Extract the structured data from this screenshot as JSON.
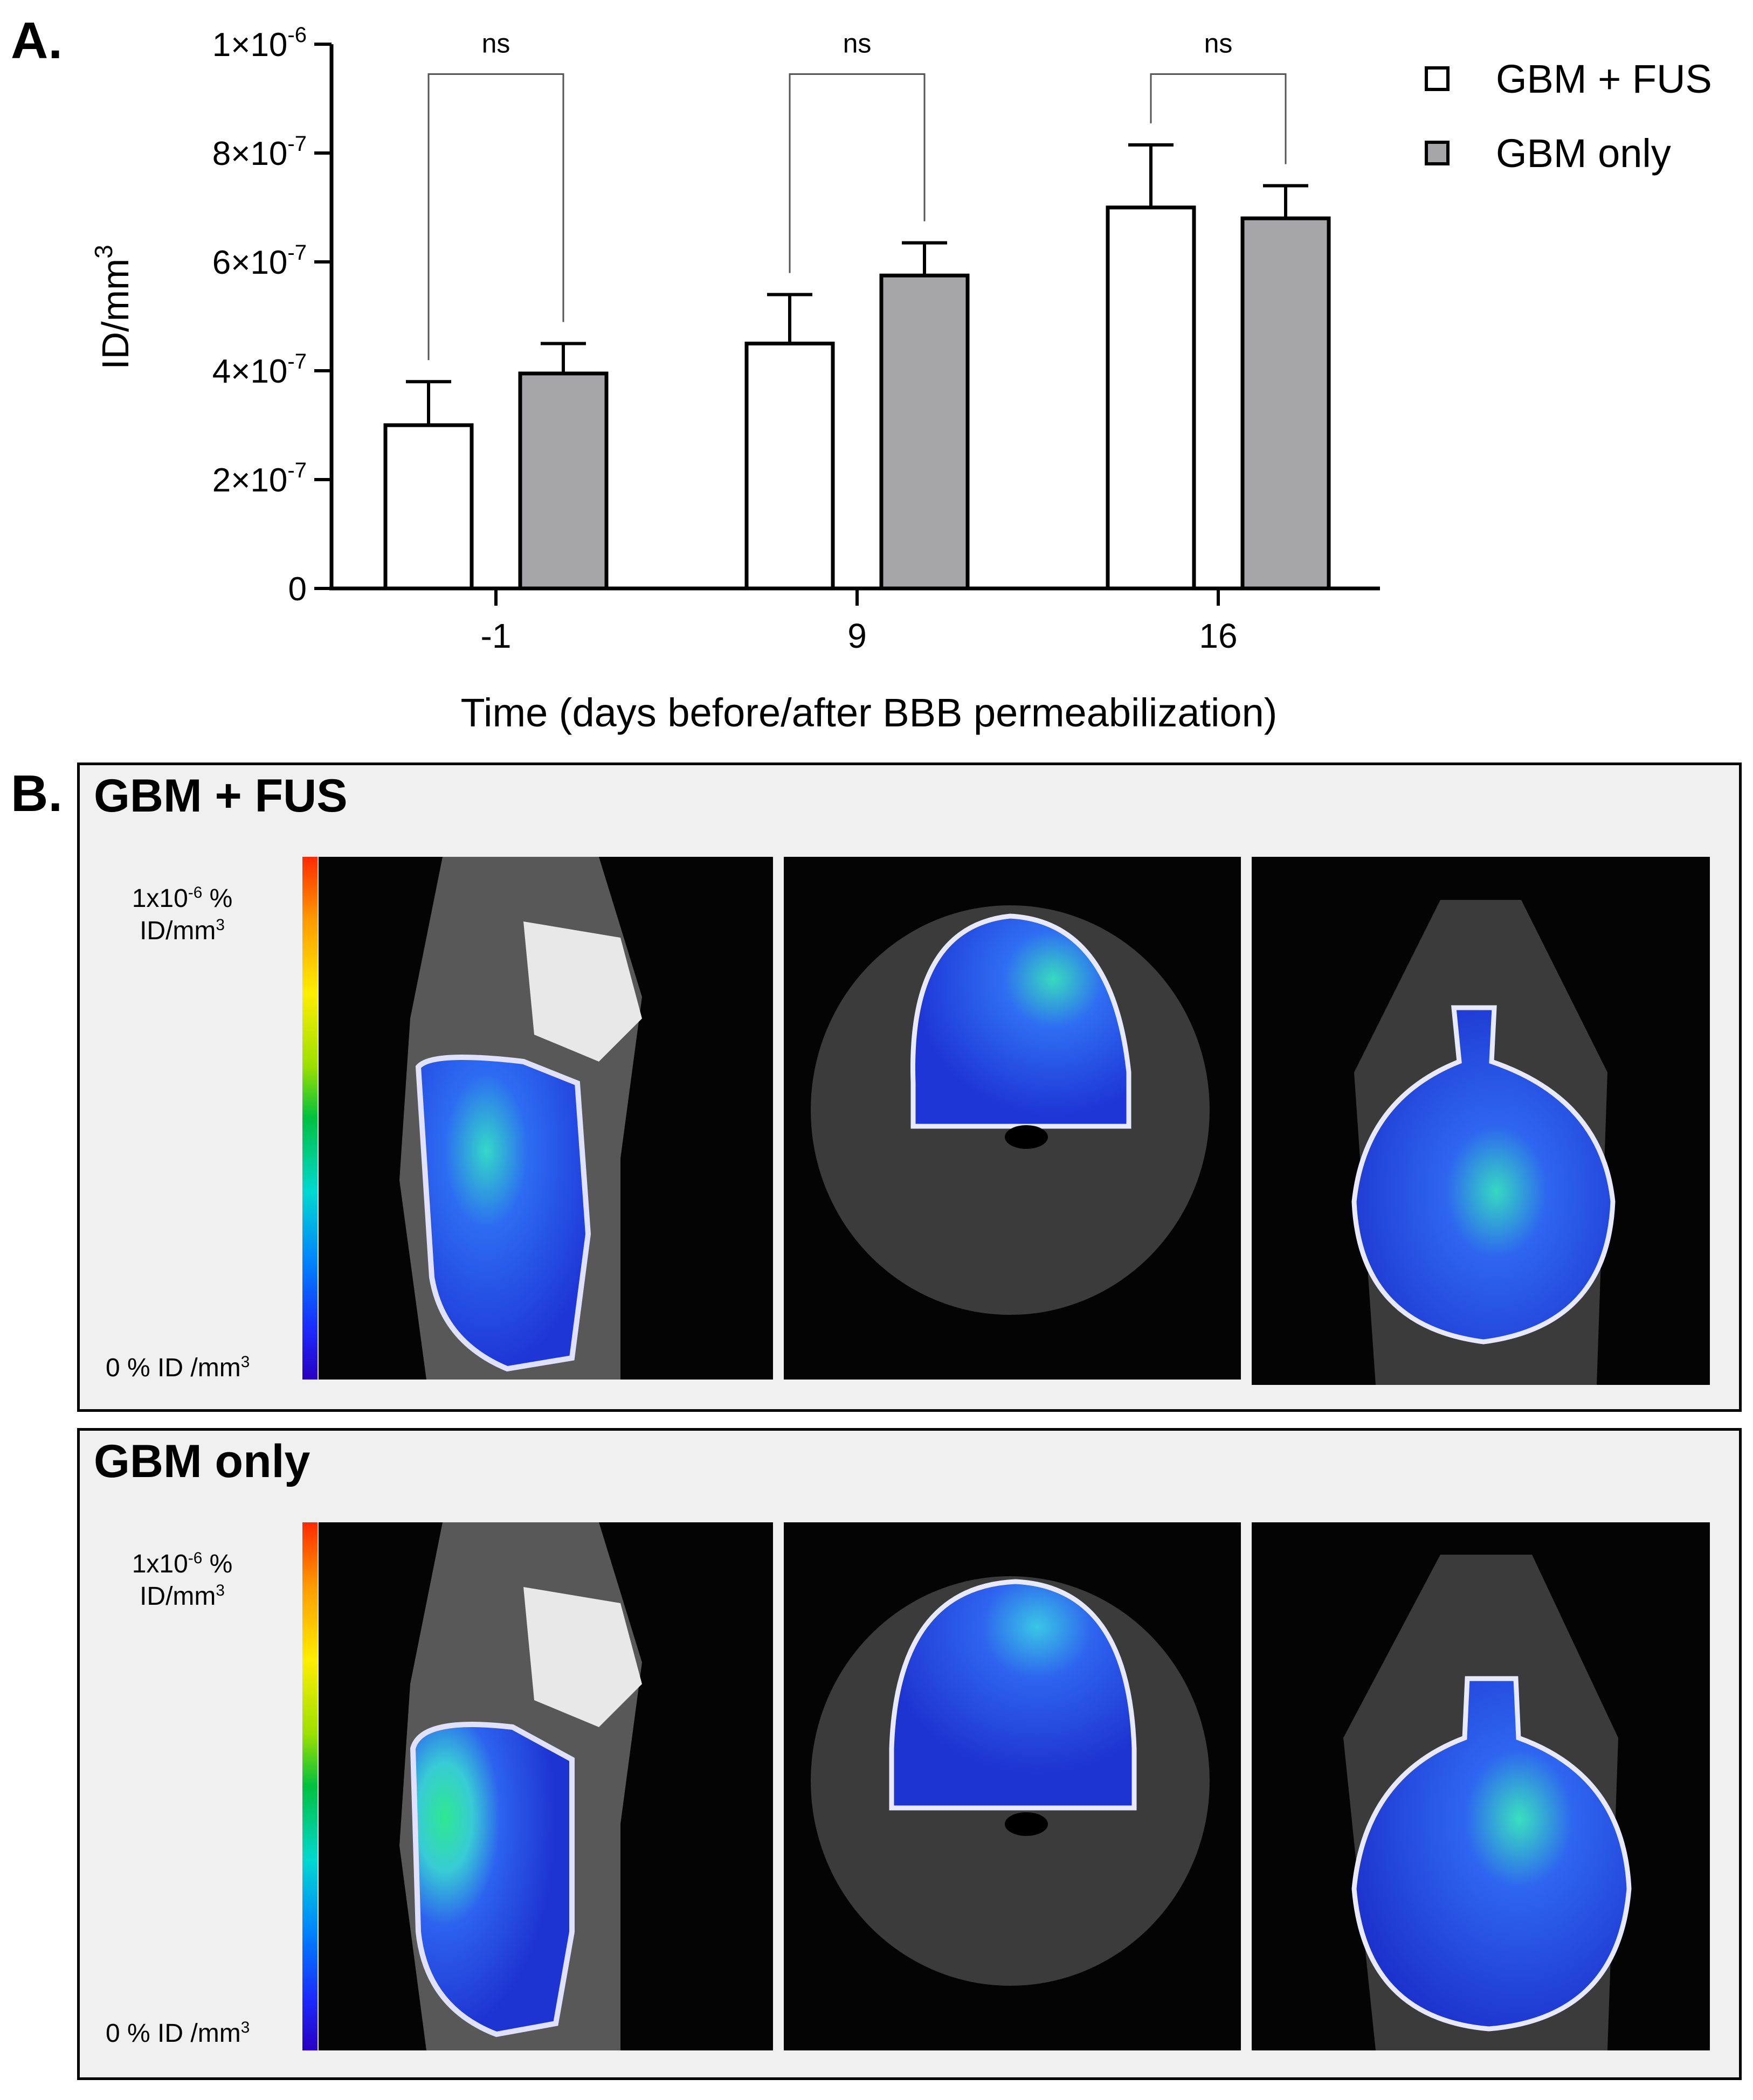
{
  "panel_a": {
    "letter": "A."
  },
  "panel_b": {
    "letter": "B."
  },
  "chart_data": {
    "type": "bar",
    "title": "",
    "xlabel": "Time (days before/after BBB permeabilization)",
    "ylabel_base": "ID/mm",
    "ylabel_sup": "3",
    "categories": [
      "-1",
      "9",
      "16"
    ],
    "ylim": [
      0,
      1e-06
    ],
    "yticks": [
      {
        "value": 0,
        "base": "0",
        "exp": ""
      },
      {
        "value": 2e-07,
        "base": "2×10",
        "exp": "-7"
      },
      {
        "value": 4e-07,
        "base": "4×10",
        "exp": "-7"
      },
      {
        "value": 6e-07,
        "base": "6×10",
        "exp": "-7"
      },
      {
        "value": 8e-07,
        "base": "8×10",
        "exp": "-7"
      },
      {
        "value": 1e-06,
        "base": "1×10",
        "exp": "-6"
      }
    ],
    "series": [
      {
        "name": "GBM + FUS",
        "color": "#ffffff",
        "values": [
          3e-07,
          4.5e-07,
          7e-07
        ],
        "error": [
          8e-08,
          9e-08,
          1.15e-07
        ]
      },
      {
        "name": "GBM only",
        "color": "#a6a6a9",
        "values": [
          3.95e-07,
          5.75e-07,
          6.8e-07
        ],
        "error": [
          5.5e-08,
          6e-08,
          6e-08
        ]
      }
    ],
    "annotations": [
      {
        "category": "-1",
        "label": "ns",
        "bracket_y": 9.45e-07
      },
      {
        "category": "9",
        "label": "ns",
        "bracket_y": 9.45e-07
      },
      {
        "category": "16",
        "label": "ns",
        "bracket_y": 9.45e-07
      }
    ],
    "legend_placement": "top-right",
    "grid": false
  },
  "groups": [
    {
      "title": "GBM + FUS",
      "colorbar_top_line1": "1x10",
      "colorbar_top_exp": "-6",
      "colorbar_top_unit": " %",
      "colorbar_top_line2": "ID/mm",
      "colorbar_top_sup": "3",
      "colorbar_bottom": "0 % ID /mm",
      "colorbar_bottom_sup": "3"
    },
    {
      "title": "GBM only",
      "colorbar_top_line1": "1x10",
      "colorbar_top_exp": "-6",
      "colorbar_top_unit": " %",
      "colorbar_top_line2": "ID/mm",
      "colorbar_top_sup": "3",
      "colorbar_bottom": "0 % ID /mm",
      "colorbar_bottom_sup": "3"
    }
  ]
}
